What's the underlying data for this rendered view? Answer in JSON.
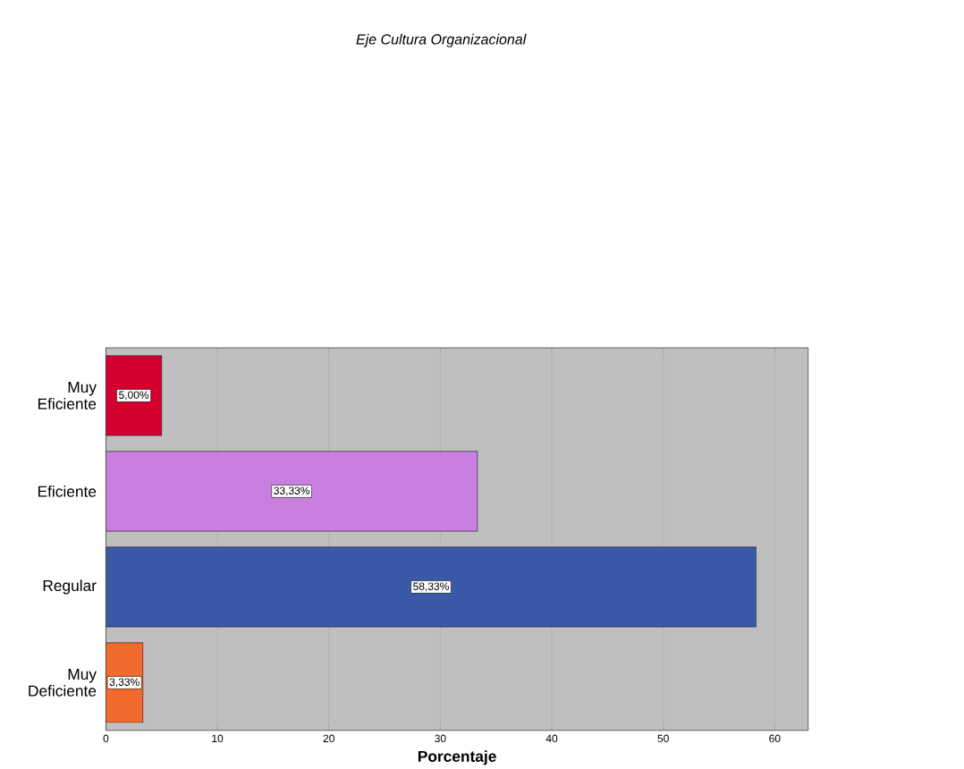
{
  "chart_data": {
    "type": "bar",
    "orientation": "horizontal",
    "title": "*Eje Cultura Organizacional*",
    "xlabel": "**Porcentaje**",
    "categories": [
      "Muy Eficiente",
      "Eficiente",
      "Regular",
      "Muy Deficiente"
    ],
    "values": [
      5,
      33.33,
      58.33,
      3.33
    ],
    "colors": [
      "#d40030",
      "#c87fe0",
      "#3a5aa8",
      "#f26a2c"
    ],
    "value_labels": [
      "5,00%",
      "33,33%",
      "58,33%",
      "3,33%"
    ],
    "xlim": [
      0,
      63
    ],
    "xticks": [
      0,
      10,
      20,
      30,
      40,
      50,
      60
    ],
    "grid": "x"
  }
}
